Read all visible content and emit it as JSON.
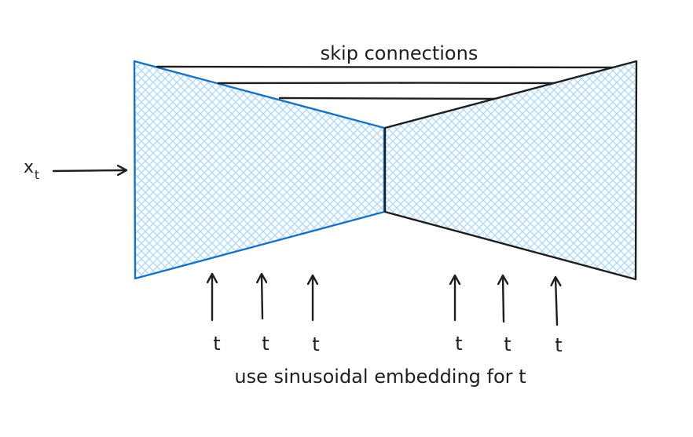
{
  "diagram": {
    "skip_label": "skip connections",
    "input_label": "x",
    "input_subscript": "t",
    "timestep_labels": [
      "t",
      "t",
      "t",
      "t",
      "t",
      "t"
    ],
    "caption": "use sinusoidal embedding for t"
  },
  "colors": {
    "encoder_stroke": "#1971c2",
    "encoder_hatch": "#a5d8ff",
    "decoder_stroke": "#1e1e1e",
    "decoder_hatch": "#a5d8ff",
    "line": "#1e1e1e"
  }
}
